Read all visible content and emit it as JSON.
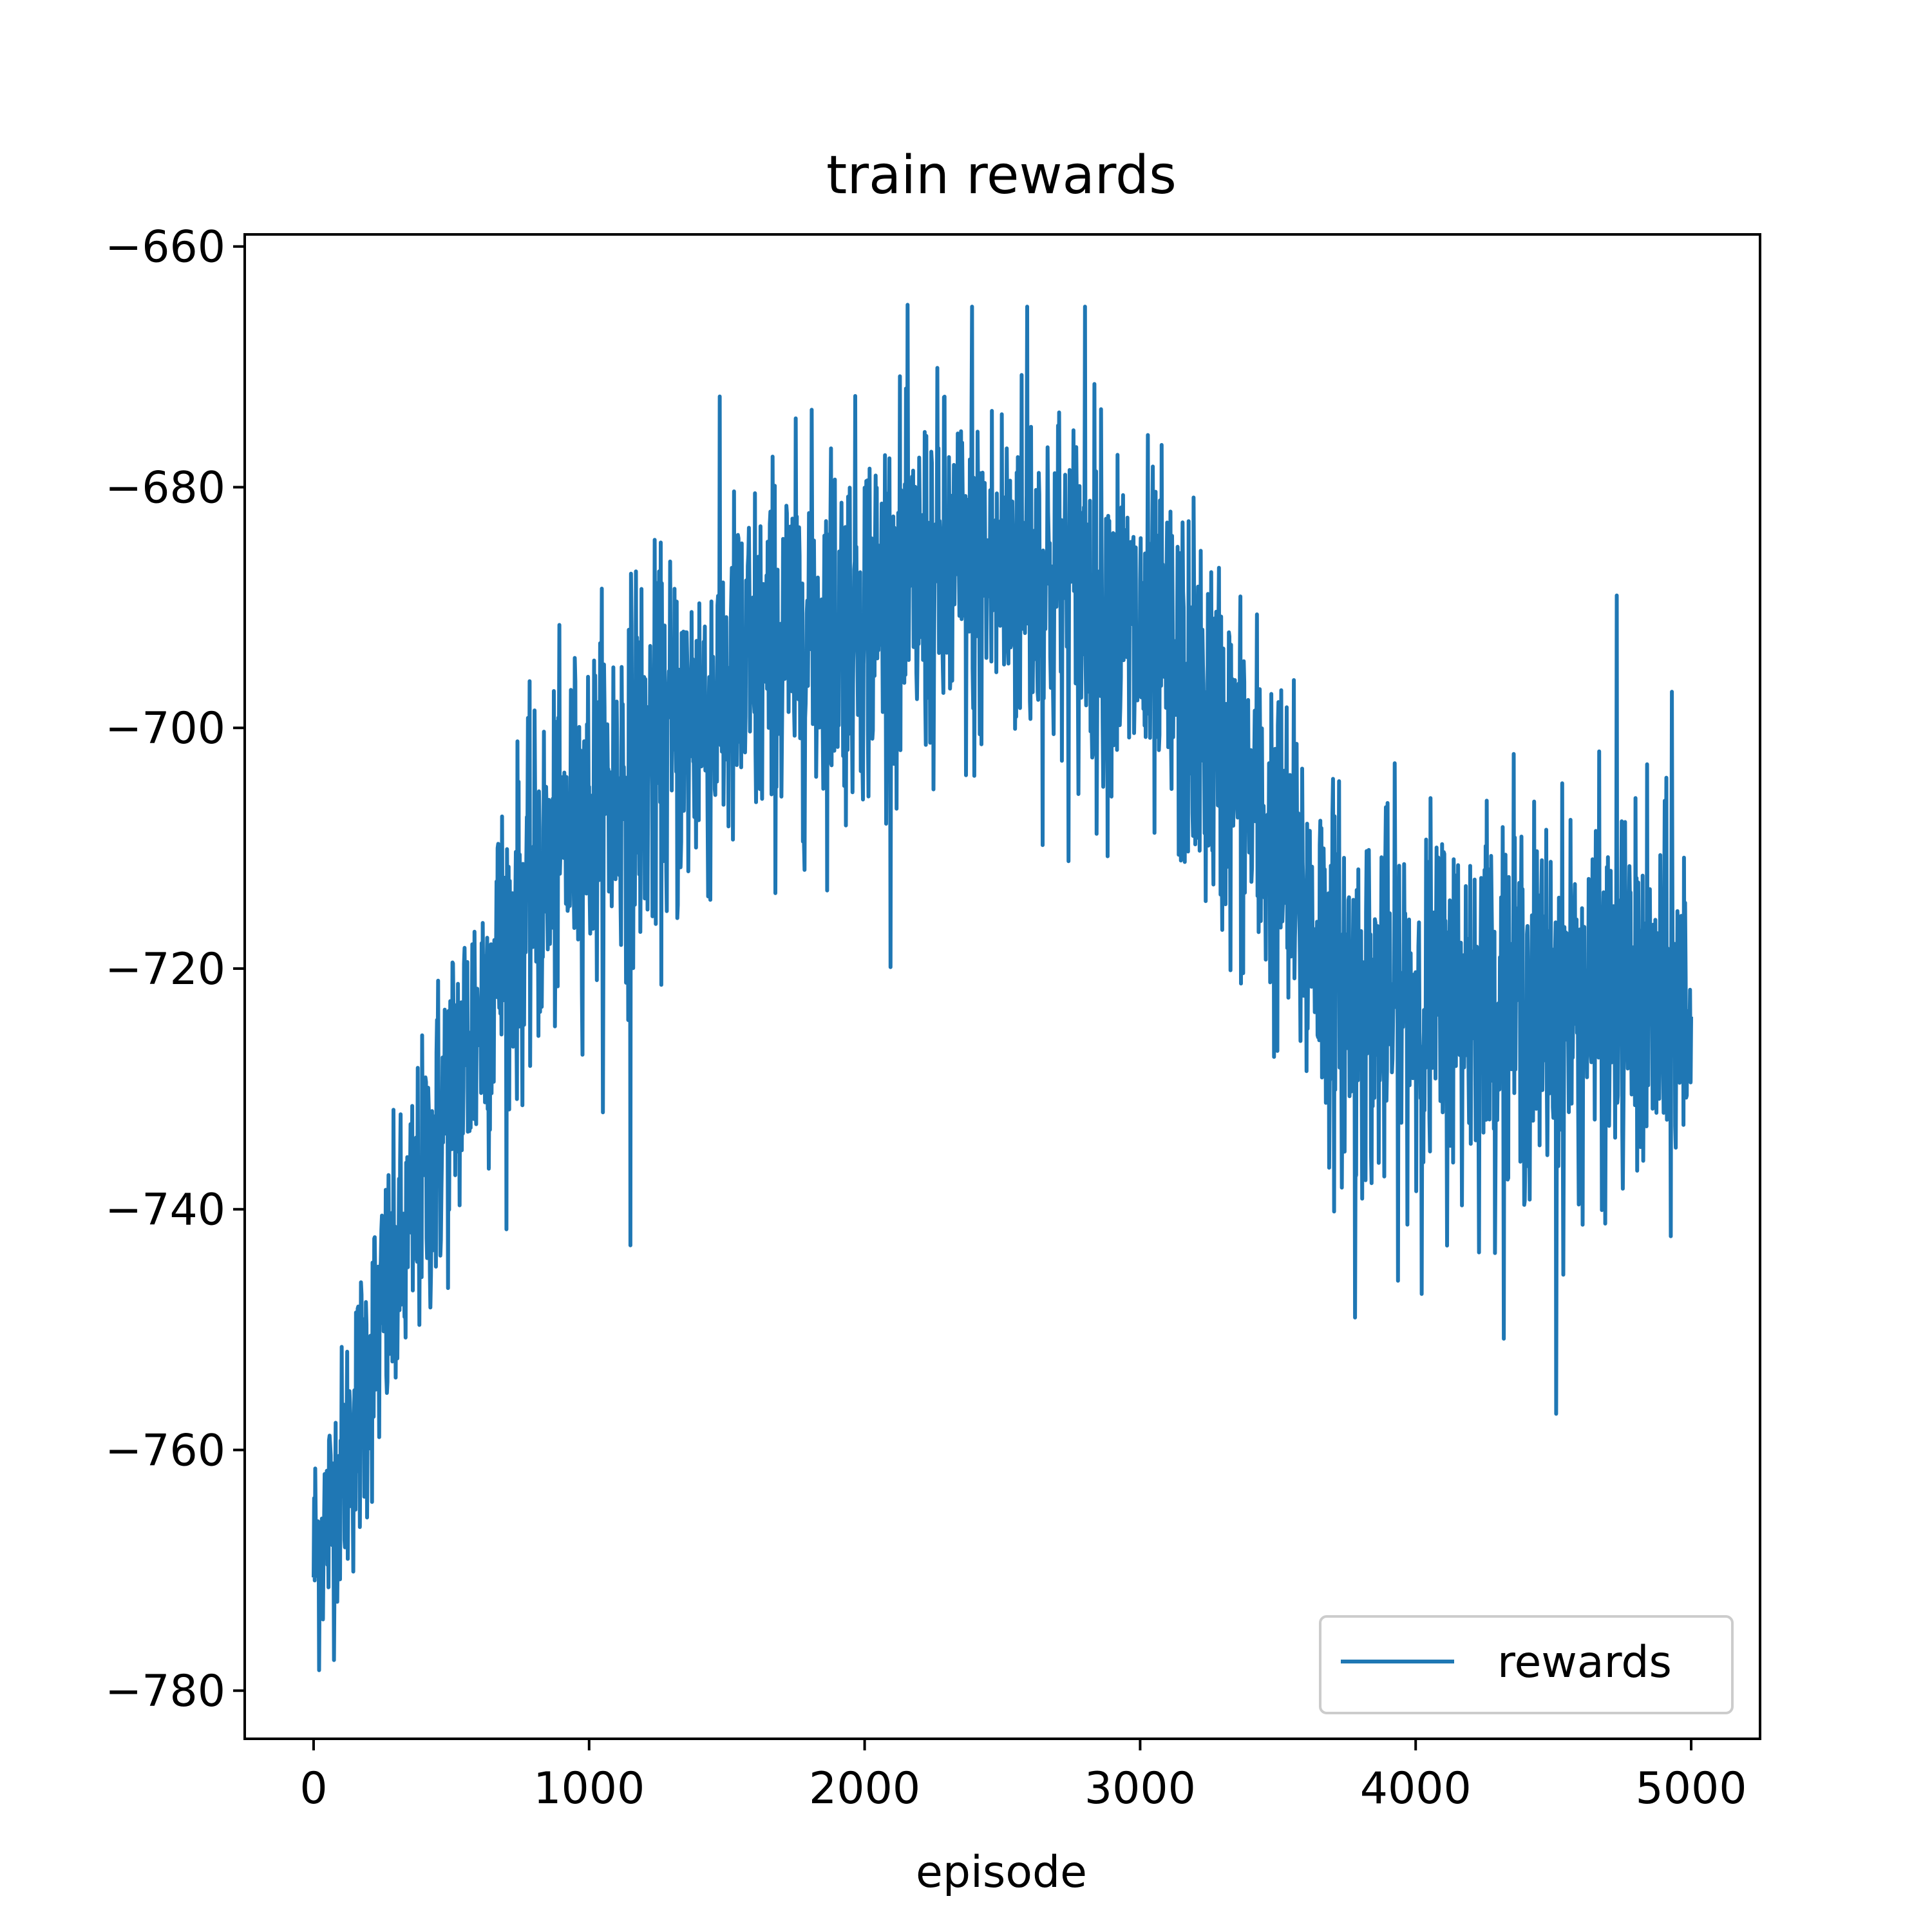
{
  "chart_data": {
    "type": "line",
    "title": "train rewards",
    "xlabel": "episode",
    "ylabel": "",
    "xlim": [
      -250,
      5250
    ],
    "ylim": [
      -784,
      -659
    ],
    "xticks": [
      0,
      1000,
      2000,
      3000,
      4000,
      5000
    ],
    "yticks": [
      -660,
      -680,
      -700,
      -720,
      -740,
      -760,
      -780
    ],
    "xtick_labels": [
      "0",
      "1000",
      "2000",
      "3000",
      "4000",
      "5000"
    ],
    "ytick_labels": [
      "−660",
      "−680",
      "−700",
      "−720",
      "−740",
      "−760",
      "−780"
    ],
    "grid": false,
    "legend": {
      "position": "lower-right",
      "entries": [
        "rewards"
      ]
    },
    "series": [
      {
        "name": "rewards",
        "color": "#1f77b4",
        "x": [
          0,
          50,
          100,
          150,
          200,
          250,
          300,
          350,
          400,
          450,
          500,
          550,
          600,
          650,
          700,
          750,
          800,
          850,
          900,
          950,
          1000,
          1050,
          1100,
          1150,
          1200,
          1250,
          1300,
          1350,
          1400,
          1450,
          1500,
          1550,
          1600,
          1650,
          1700,
          1750,
          1800,
          1850,
          1900,
          1950,
          2000,
          2050,
          2100,
          2150,
          2200,
          2250,
          2300,
          2350,
          2400,
          2450,
          2500,
          2550,
          2600,
          2650,
          2700,
          2750,
          2800,
          2850,
          2900,
          2950,
          3000,
          3050,
          3100,
          3150,
          3200,
          3250,
          3300,
          3350,
          3400,
          3450,
          3500,
          3550,
          3600,
          3650,
          3700,
          3750,
          3800,
          3850,
          3900,
          3950,
          4000,
          4050,
          4100,
          4150,
          4200,
          4250,
          4300,
          4350,
          4400,
          4450,
          4500,
          4550,
          4600,
          4650,
          4700,
          4750,
          4800,
          4850,
          4900,
          4950,
          5000
        ],
        "y": [
          -769,
          -766,
          -762,
          -758,
          -753,
          -749,
          -746,
          -742,
          -738,
          -734,
          -730,
          -727,
          -724,
          -721,
          -718,
          -716,
          -714,
          -712,
          -710,
          -708,
          -707,
          -706,
          -705,
          -704,
          -703,
          -702,
          -701,
          -700,
          -699,
          -698,
          -697,
          -696,
          -695,
          -694,
          -693,
          -693,
          -692,
          -692,
          -691,
          -691,
          -690,
          -690,
          -689,
          -689,
          -689,
          -688,
          -688,
          -688,
          -688,
          -687,
          -687,
          -687,
          -687,
          -688,
          -688,
          -689,
          -689,
          -690,
          -691,
          -692,
          -693,
          -694,
          -695,
          -697,
          -698,
          -700,
          -702,
          -704,
          -706,
          -708,
          -711,
          -713,
          -716,
          -718,
          -720,
          -722,
          -723,
          -723,
          -723,
          -723,
          -723,
          -723,
          -723,
          -723,
          -722,
          -722,
          -722,
          -722,
          -723,
          -723,
          -723,
          -723,
          -723,
          -723,
          -723,
          -723,
          -723,
          -724,
          -724,
          -724,
          -723
        ],
        "noise_amplitude": [
          6,
          6,
          6,
          7,
          7,
          7,
          7,
          7,
          7,
          8,
          8,
          8,
          8,
          8,
          8,
          8,
          8,
          8,
          8,
          8,
          8,
          9,
          9,
          9,
          9,
          9,
          9,
          9,
          9,
          9,
          9,
          9,
          9,
          9,
          9,
          9,
          9,
          9,
          9,
          9,
          9,
          9,
          9,
          9,
          9,
          9,
          9,
          9,
          9,
          9,
          9,
          9,
          9,
          9,
          9,
          9,
          9,
          9,
          9,
          9,
          9,
          9,
          9,
          9,
          9,
          9,
          9,
          9,
          9,
          9,
          9,
          9,
          9,
          9,
          9,
          9,
          9,
          9,
          9,
          9,
          9,
          9,
          9,
          9,
          9,
          9,
          9,
          9,
          9,
          9,
          9,
          9,
          9,
          9,
          9,
          9,
          9,
          9,
          9,
          9,
          9
        ],
        "spikes": [
          {
            "x": 1150,
            "y": -743
          },
          {
            "x": 1170,
            "y": -687
          },
          {
            "x": 2390,
            "y": -665
          },
          {
            "x": 2590,
            "y": -665
          },
          {
            "x": 2800,
            "y": -665
          },
          {
            "x": 3780,
            "y": -749
          },
          {
            "x": 4510,
            "y": -757
          },
          {
            "x": 4730,
            "y": -689
          },
          {
            "x": 4930,
            "y": -697
          }
        ]
      }
    ]
  }
}
